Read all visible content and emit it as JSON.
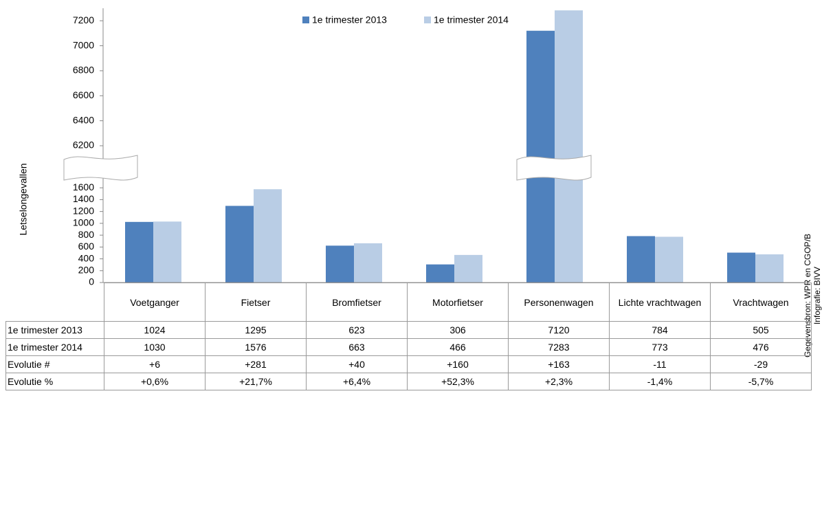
{
  "chart_data": {
    "type": "bar",
    "y_axis_label": "Letselongevallen",
    "categories": [
      "Voetganger",
      "Fietser",
      "Bromfietser",
      "Motorfietser",
      "Personenwagen",
      "Lichte vrachtwagen",
      "Vrachtwagen"
    ],
    "series": [
      {
        "name": "1e trimester 2013",
        "color": "#4f81bd",
        "values": [
          1024,
          1295,
          623,
          306,
          7120,
          784,
          505
        ]
      },
      {
        "name": "1e trimester 2014",
        "color": "#b9cde5",
        "values": [
          1030,
          1576,
          663,
          466,
          7283,
          773,
          476
        ]
      }
    ],
    "ylim": [
      0,
      7300
    ],
    "ybreak": [
      1700,
      6100
    ],
    "yticks": [
      0,
      200,
      400,
      600,
      800,
      1000,
      1200,
      1400,
      1600,
      6200,
      6400,
      6600,
      6800,
      7000,
      7200
    ],
    "grid": false,
    "legend": "top",
    "table_rows": [
      {
        "name": "Evolutie #",
        "values": [
          "+6",
          "+281",
          "+40",
          "+160",
          "+163",
          "-11",
          "-29"
        ]
      },
      {
        "name": "Evolutie %",
        "values": [
          "+0,6%",
          "+21,7%",
          "+6,4%",
          "+52,3%",
          "+2,3%",
          "-1,4%",
          "-5,7%"
        ]
      }
    ],
    "source": "Gegevensbron: WPR en CGOP/B",
    "credit": "Infografie: BIVV"
  }
}
